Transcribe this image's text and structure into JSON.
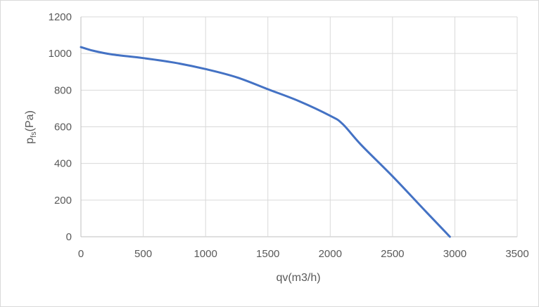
{
  "chart_data": {
    "type": "line",
    "title": "",
    "xlabel": "qv(m3/h)",
    "ylabel": {
      "main": "p",
      "sub": "fs",
      "unit": "(Pa)"
    },
    "xlim": [
      0,
      3500
    ],
    "ylim": [
      0,
      1200
    ],
    "x_ticks": [
      0,
      500,
      1000,
      1500,
      2000,
      2500,
      3000,
      3500
    ],
    "y_ticks": [
      0,
      200,
      400,
      600,
      800,
      1000,
      1200
    ],
    "grid": true,
    "legend": "none",
    "series": [
      {
        "color": "#4472c4",
        "x": [
          0,
          100,
          250,
          500,
          750,
          1000,
          1250,
          1500,
          1750,
          2000,
          2100,
          2250,
          2500,
          2750,
          2960
        ],
        "y": [
          1035,
          1015,
          995,
          975,
          950,
          915,
          870,
          805,
          740,
          660,
          615,
          500,
          330,
          150,
          0
        ]
      }
    ]
  }
}
